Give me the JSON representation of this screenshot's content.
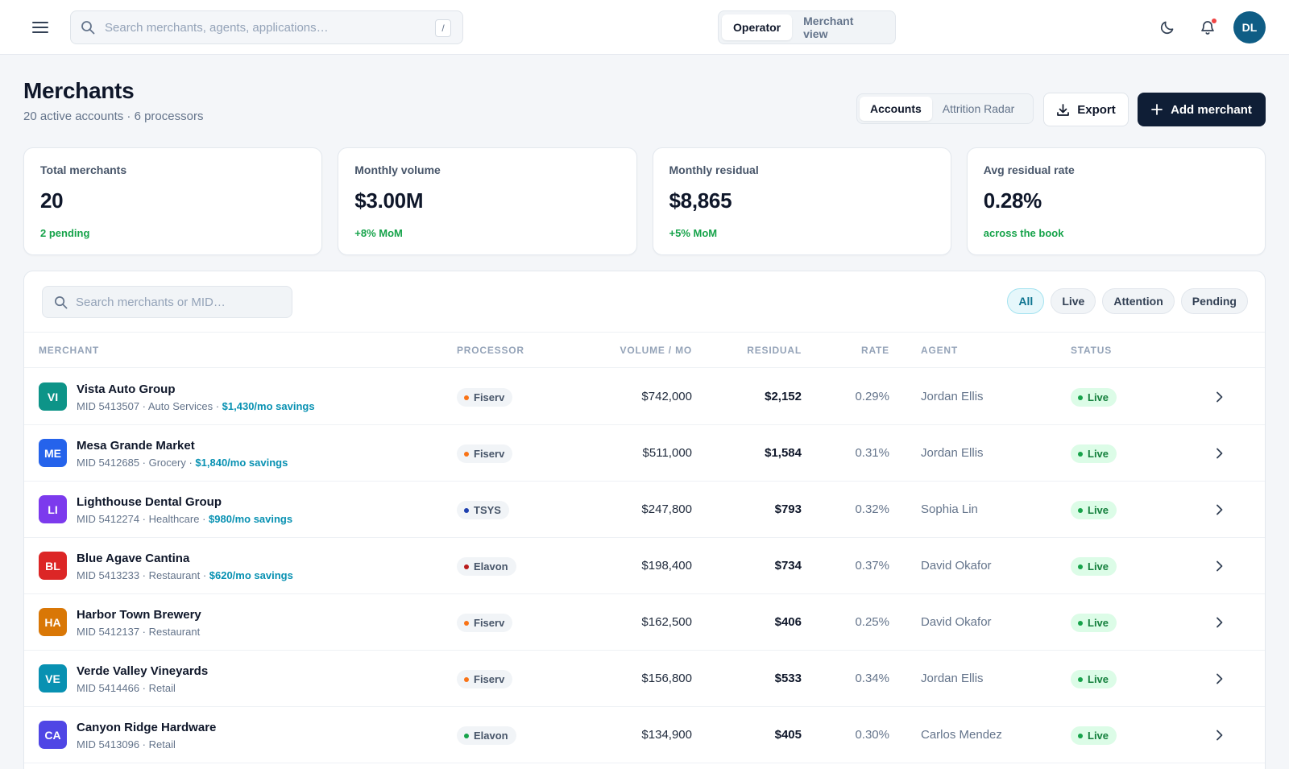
{
  "topbar": {
    "search_placeholder": "Search merchants, agents, applications…",
    "search_shortcut": "/",
    "view_toggle": [
      "Operator",
      "Merchant view"
    ],
    "view_active": "Operator",
    "user_initials": "DL"
  },
  "header": {
    "title": "Merchants",
    "subtitle": "20 active accounts · 6 processors",
    "tabs": [
      "Accounts",
      "Attrition Radar"
    ],
    "tab_active": "Accounts",
    "export_label": "Export",
    "add_label": "Add merchant"
  },
  "kpis": [
    {
      "label": "Total merchants",
      "value": "20",
      "foot": "2 pending"
    },
    {
      "label": "Monthly volume",
      "value": "$3.00M",
      "foot": "+8% MoM"
    },
    {
      "label": "Monthly residual",
      "value": "$8,865",
      "foot": "+5% MoM"
    },
    {
      "label": "Avg residual rate",
      "value": "0.28%",
      "foot": "across the book"
    }
  ],
  "table": {
    "search_placeholder": "Search merchants or MID…",
    "filters": [
      "All",
      "Live",
      "Attention",
      "Pending"
    ],
    "filter_active": "All",
    "columns": [
      "MERCHANT",
      "PROCESSOR",
      "VOLUME / MO",
      "RESIDUAL",
      "RATE",
      "AGENT",
      "STATUS"
    ],
    "rows": [
      {
        "initials": "VI",
        "color": "#0d9488",
        "name": "Vista Auto Group",
        "meta": "MID 5413507 · Auto Services",
        "savings": "$1,430/mo savings",
        "processor": "Fiserv",
        "proc_color": "#f97316",
        "volume": "$742,000",
        "residual": "$2,152",
        "rate": "0.29%",
        "agent": "Jordan Ellis",
        "status": "Live"
      },
      {
        "initials": "ME",
        "color": "#2563eb",
        "name": "Mesa Grande Market",
        "meta": "MID 5412685 · Grocery",
        "savings": "$1,840/mo savings",
        "processor": "Fiserv",
        "proc_color": "#f97316",
        "volume": "$511,000",
        "residual": "$1,584",
        "rate": "0.31%",
        "agent": "Jordan Ellis",
        "status": "Live"
      },
      {
        "initials": "LI",
        "color": "#7c3aed",
        "name": "Lighthouse Dental Group",
        "meta": "MID 5412274 · Healthcare",
        "savings": "$980/mo savings",
        "processor": "TSYS",
        "proc_color": "#1e40af",
        "volume": "$247,800",
        "residual": "$793",
        "rate": "0.32%",
        "agent": "Sophia Lin",
        "status": "Live"
      },
      {
        "initials": "BL",
        "color": "#dc2626",
        "name": "Blue Agave Cantina",
        "meta": "MID 5413233 · Restaurant",
        "savings": "$620/mo savings",
        "processor": "Elavon",
        "proc_color": "#b91c1c",
        "volume": "$198,400",
        "residual": "$734",
        "rate": "0.37%",
        "agent": "David Okafor",
        "status": "Live"
      },
      {
        "initials": "HA",
        "color": "#d97706",
        "name": "Harbor Town Brewery",
        "meta": "MID 5412137 · Restaurant",
        "savings": "",
        "processor": "Fiserv",
        "proc_color": "#f97316",
        "volume": "$162,500",
        "residual": "$406",
        "rate": "0.25%",
        "agent": "David Okafor",
        "status": "Live"
      },
      {
        "initials": "VE",
        "color": "#0891b2",
        "name": "Verde Valley Vineyards",
        "meta": "MID 5414466 · Retail",
        "savings": "",
        "processor": "Fiserv",
        "proc_color": "#f97316",
        "volume": "$156,800",
        "residual": "$533",
        "rate": "0.34%",
        "agent": "Jordan Ellis",
        "status": "Live"
      },
      {
        "initials": "CA",
        "color": "#4f46e5",
        "name": "Canyon Ridge Hardware",
        "meta": "MID 5413096 · Retail",
        "savings": "",
        "processor": "Elavon",
        "proc_color": "#16a34a",
        "volume": "$134,900",
        "residual": "$405",
        "rate": "0.30%",
        "agent": "Carlos Mendez",
        "status": "Live"
      }
    ]
  }
}
